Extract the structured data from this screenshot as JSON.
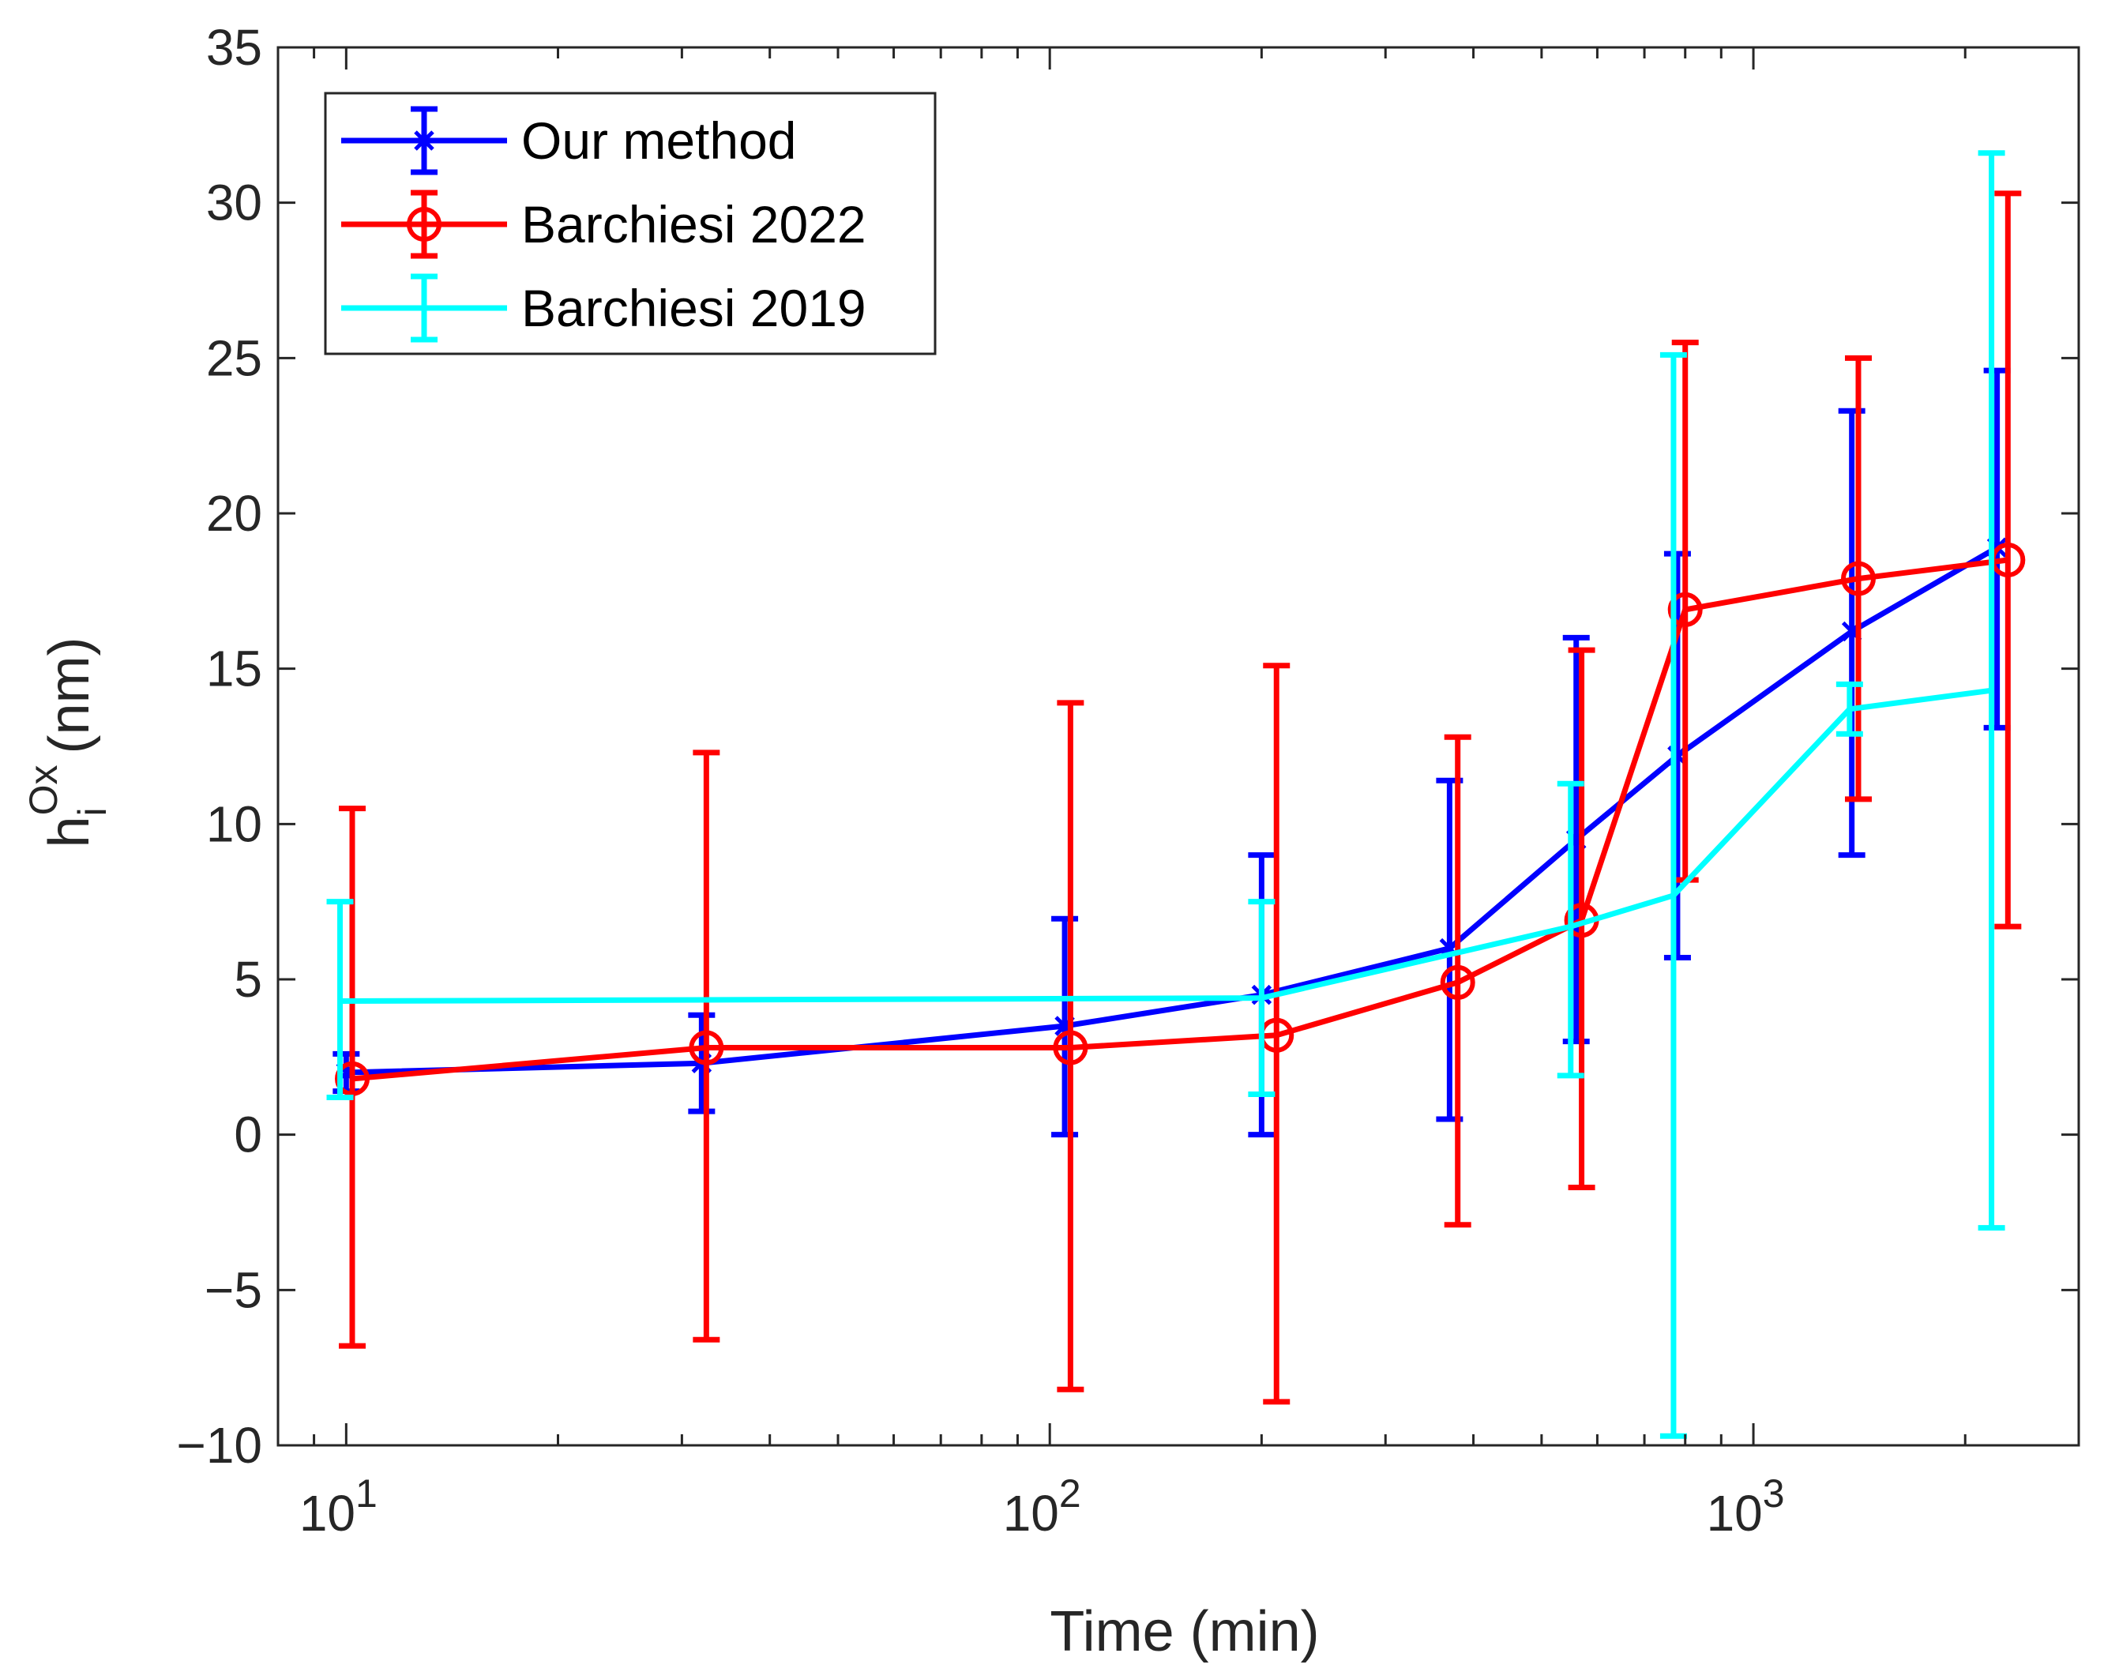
{
  "chart_data": {
    "type": "line",
    "title": "",
    "xlabel": "Time (min)",
    "ylabel_base": "h",
    "ylabel_sub": "i",
    "ylabel_sup": "Ox",
    "ylabel_unit": "(nm)",
    "xscale": "log",
    "xlim": [
      8,
      2900
    ],
    "ylim": [
      -10,
      35
    ],
    "yticks": [
      -10,
      -5,
      0,
      5,
      10,
      15,
      20,
      25,
      30,
      35
    ],
    "ytick_labels": [
      "−10",
      "−5",
      "0",
      "5",
      "10",
      "15",
      "20",
      "25",
      "30",
      "35"
    ],
    "xticks": [
      {
        "value": 10,
        "base": "10",
        "exp": "1"
      },
      {
        "value": 100,
        "base": "10",
        "exp": "2"
      },
      {
        "value": 1000,
        "base": "10",
        "exp": "3"
      }
    ],
    "legend_position": "top-left",
    "grid": false,
    "series": [
      {
        "name": "Our method",
        "color": "#0000ff",
        "marker": "x",
        "x": [
          10,
          32,
          105,
          200,
          370,
          560,
          780,
          1380,
          2220
        ],
        "y": [
          2.0,
          2.3,
          3.5,
          4.5,
          6.0,
          9.5,
          12.2,
          16.2,
          18.9
        ],
        "err_low": [
          1.4,
          0.75,
          0.0,
          0.0,
          0.5,
          3.0,
          5.7,
          9.0,
          13.1
        ],
        "err_high": [
          2.6,
          3.85,
          6.95,
          9.0,
          11.4,
          16.0,
          18.7,
          23.3,
          24.6
        ]
      },
      {
        "name": "Barchiesi 2022",
        "color": "#ff0000",
        "marker": "o",
        "x": [
          10.2,
          32.5,
          107,
          210,
          380,
          570,
          800,
          1410,
          2300
        ],
        "y": [
          1.8,
          2.8,
          2.8,
          3.2,
          4.9,
          6.9,
          16.9,
          17.9,
          18.5
        ],
        "err_low": [
          -6.8,
          -6.6,
          -8.2,
          -8.6,
          -2.9,
          -1.7,
          8.2,
          10.8,
          6.7
        ],
        "err_high": [
          10.5,
          12.3,
          13.9,
          15.1,
          12.8,
          15.6,
          25.5,
          25.0,
          30.3
        ]
      },
      {
        "name": "Barchiesi 2019",
        "color": "#00ffff",
        "marker": "none",
        "x": [
          9.8,
          200,
          550,
          770,
          1370,
          2180
        ],
        "y": [
          4.3,
          4.4,
          6.7,
          7.7,
          13.7,
          14.3
        ],
        "err_low": [
          1.2,
          1.3,
          1.9,
          -9.7,
          12.9,
          -3.0
        ],
        "err_high": [
          7.5,
          7.5,
          11.3,
          25.1,
          14.5,
          31.6
        ]
      }
    ]
  }
}
